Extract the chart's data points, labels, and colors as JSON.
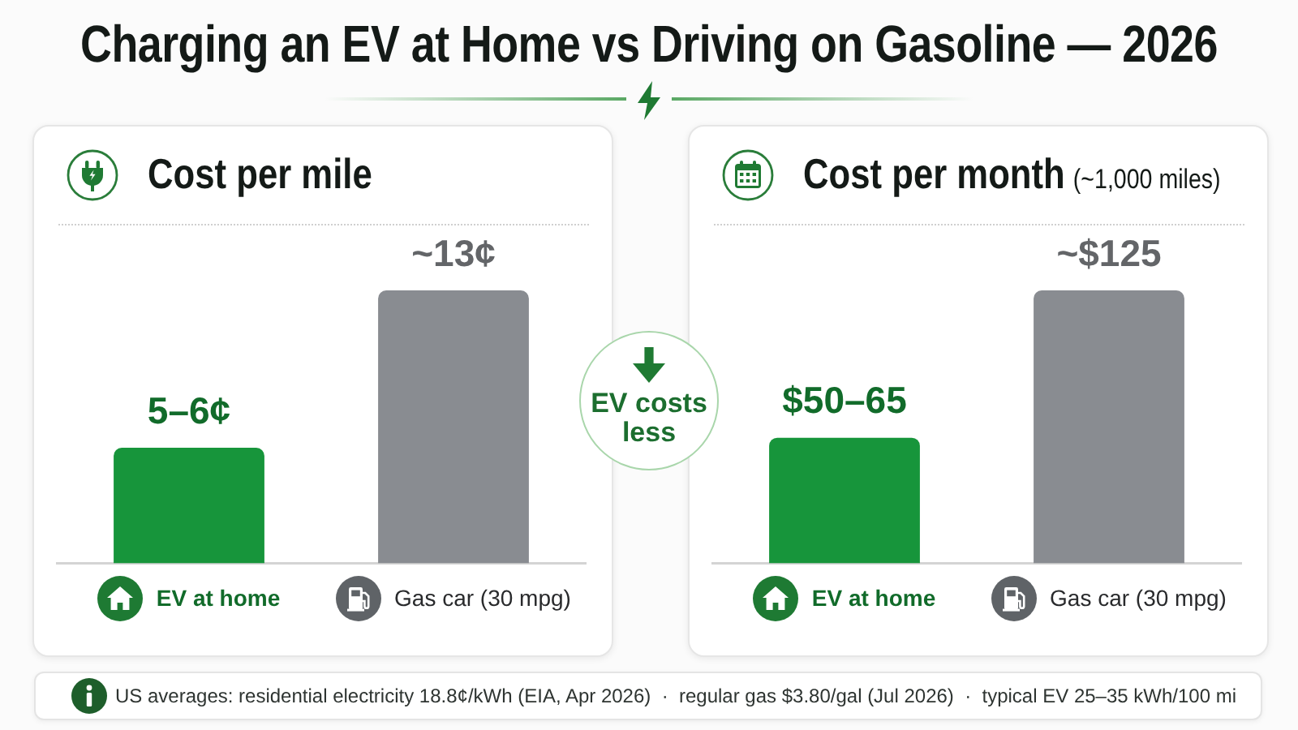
{
  "chart_data": [
    {
      "type": "other",
      "title": "Charging an EV at Home vs Driving on Gasoline — 2026",
      "annotations": [
        "EV costs less",
        "US averages: residential electricity 18.8¢/kWh (EIA, Apr 2026)  ·  regular gas $3.80/gal (Jul 2026)  ·  typical EV 25–35 kWh/100 mi"
      ]
    },
    {
      "type": "bar",
      "title": "Cost per mile",
      "categories": [
        "EV at home",
        "Gas car (30 mpg)"
      ],
      "values": [
        5.5,
        13
      ],
      "colors": [
        "#17953b",
        "#898c91"
      ],
      "value_labels": [
        "5–6¢",
        "~13¢"
      ]
    },
    {
      "type": "bar",
      "title": "Cost per month",
      "subtitle": "(~1,000 miles)",
      "categories": [
        "EV at home",
        "Gas car (30 mpg)"
      ],
      "values": [
        57.5,
        125
      ],
      "colors": [
        "#17953b",
        "#898c91"
      ],
      "value_labels": [
        "$50–65",
        "~$125"
      ]
    }
  ]
}
